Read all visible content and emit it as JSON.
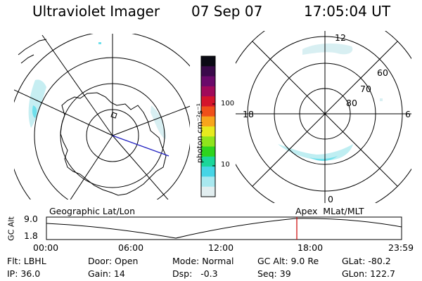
{
  "header": {
    "title": "Ultraviolet Imager",
    "date": "07 Sep 07",
    "time": "17:05:04 UT"
  },
  "colorbar": {
    "unit": "photon cm⁻²s⁻¹",
    "ticks": [
      "100",
      "10"
    ],
    "colors": [
      "#0a0a14",
      "#3a0a4a",
      "#6a0a6a",
      "#a00a5a",
      "#d4142c",
      "#f0501a",
      "#f7a51c",
      "#e7ea1e",
      "#8fe41c",
      "#2ed41e",
      "#1bd69a",
      "#46d5e6",
      "#a8e8ef",
      "#e2eef0"
    ]
  },
  "left_plot": {
    "label": "Geographic Lat/Lon"
  },
  "right_plot": {
    "label": "Apex  MLat/MLT",
    "lat_labels": [
      "60",
      "70",
      "80"
    ],
    "mlt_labels": {
      "top": "12",
      "left": "18",
      "right": "6",
      "bottom": "0"
    }
  },
  "altitude_panel": {
    "axis_label": "GC Alt",
    "y_ticks": [
      "9.0",
      "1.8"
    ],
    "x_ticks": [
      "00:00",
      "06:00",
      "12:00",
      "18:00",
      "23:59"
    ],
    "current_time_marker": "17:05",
    "marker_color": "#cc0000"
  },
  "footer": {
    "flt": "Flt: LBHL",
    "ip": "IP: 36.0",
    "door": "Door: Open",
    "gain": "Gain: 14",
    "mode": "Mode: Normal",
    "dsp": "Dsp:   -0.3",
    "gcalt": "GC Alt: 9.0 Re",
    "seq": "Seq: 39",
    "glat": "GLat: -80.2",
    "glon": "GLon: 122.7"
  }
}
